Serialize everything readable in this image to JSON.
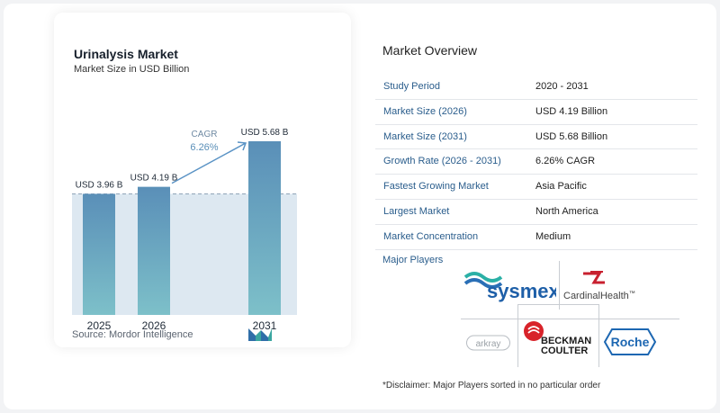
{
  "chart": {
    "title": "Urinalysis Market",
    "subtitle": "Market Size in USD Billion",
    "source": "Source:  Mordor Intelligence",
    "cagr_label": "CAGR",
    "cagr_value": "6.26%",
    "colors": {
      "bar_top": "#5a8fb8",
      "bar_bottom": "#7dc0c9",
      "band": "#dde8f1",
      "arrow": "#5a93c5",
      "dashed": "#8fa4b8"
    }
  },
  "chart_data": {
    "type": "bar",
    "categories": [
      "2025",
      "2026",
      "2031"
    ],
    "values": [
      3.96,
      4.19,
      5.68
    ],
    "data_labels": [
      "USD 3.96 B",
      "USD 4.19 B",
      "USD 5.68 B"
    ],
    "title": "Urinalysis Market",
    "subtitle": "Market Size in USD Billion",
    "ylim": [
      0,
      5.68
    ],
    "grid": false,
    "legend": "none"
  },
  "overview": {
    "title": "Market Overview",
    "rows": [
      {
        "key": "Study Period",
        "value": "2020 - 2031"
      },
      {
        "key": "Market Size (2026)",
        "value": "USD 4.19 Billion"
      },
      {
        "key": "Market Size (2031)",
        "value": "USD 5.68 Billion"
      },
      {
        "key": "Growth Rate (2026 - 2031)",
        "value": "6.26% CAGR"
      },
      {
        "key": "Fastest Growing Market",
        "value": "Asia Pacific"
      },
      {
        "key": "Largest Market",
        "value": "North America"
      },
      {
        "key": "Market Concentration",
        "value": "Medium"
      }
    ]
  },
  "players": {
    "title": "Major Players",
    "logos": {
      "sysmex": "sysmex",
      "cardinal": "CardinalHealth",
      "cardinal_tm": "™",
      "arkray": "arkray",
      "beckman_1": "BECKMAN",
      "beckman_2": "COULTER",
      "roche": "Roche"
    },
    "disclaimer": "*Disclaimer: Major Players sorted in no particular order"
  }
}
